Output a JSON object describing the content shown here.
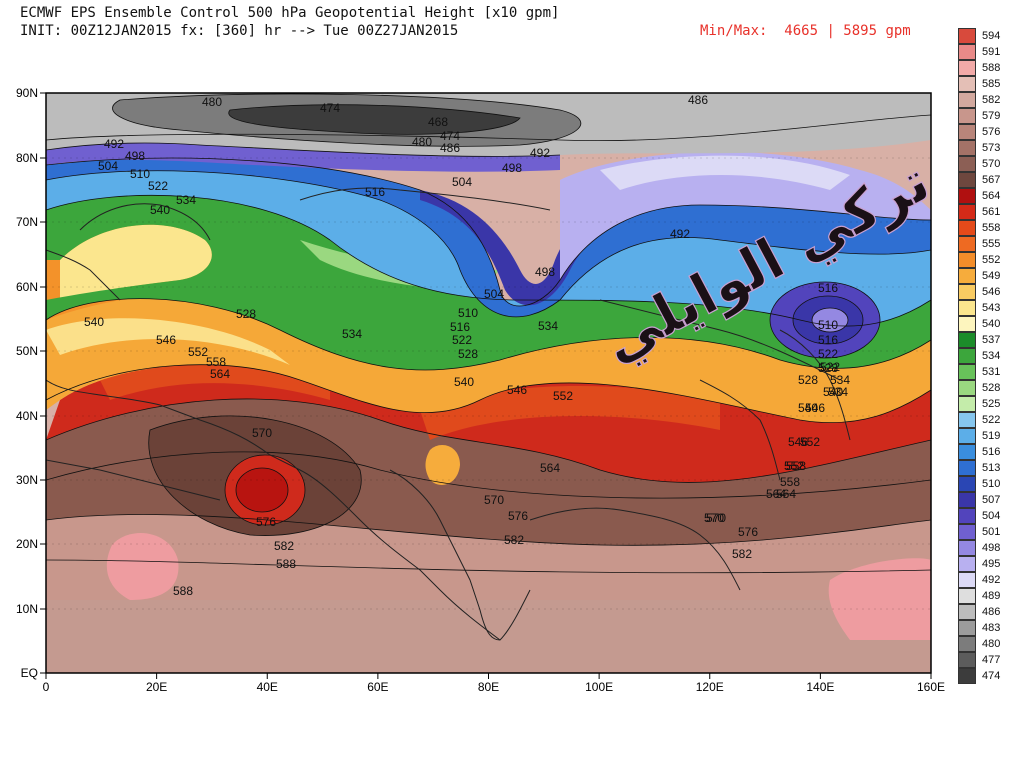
{
  "header": {
    "title": "ECMWF EPS Ensemble Control 500 hPa Geopotential Height [x10 gpm]",
    "init": "INIT: 00Z12JAN2015 fx: [360] hr --> Tue 00Z27JAN2015",
    "minmax_label": "Min/Max:",
    "minmax_value": "4665 | 5895 gpm"
  },
  "watermark": "تركي الوايلي",
  "axes": {
    "y_ticks": [
      "90N",
      "80N",
      "70N",
      "60N",
      "50N",
      "40N",
      "30N",
      "20N",
      "10N",
      "EQ"
    ],
    "x_ticks": [
      "0",
      "20E",
      "40E",
      "60E",
      "80E",
      "100E",
      "120E",
      "140E",
      "160E"
    ]
  },
  "colorbar": {
    "levels": [
      "594",
      "591",
      "588",
      "585",
      "582",
      "579",
      "576",
      "573",
      "570",
      "567",
      "564",
      "561",
      "558",
      "555",
      "552",
      "549",
      "546",
      "543",
      "540",
      "537",
      "534",
      "531",
      "528",
      "525",
      "522",
      "519",
      "516",
      "513",
      "510",
      "507",
      "504",
      "501",
      "498",
      "495",
      "492",
      "489",
      "486",
      "483",
      "480",
      "477",
      "474"
    ],
    "colors": [
      "#d84a3c",
      "#e98a88",
      "#f2aaa8",
      "#e4bfb6",
      "#d3a99f",
      "#c8968c",
      "#b8857a",
      "#a47267",
      "#8c5f55",
      "#6e473e",
      "#b01010",
      "#d42a18",
      "#e44a1a",
      "#ee6a22",
      "#f38d2a",
      "#f6ac3c",
      "#f9cb62",
      "#fbe68e",
      "#fdf5be",
      "#1c8c2a",
      "#3ca63c",
      "#68c25a",
      "#9ad880",
      "#c4ecaa",
      "#86c6ee",
      "#5caee8",
      "#3a8ede",
      "#2f6fd2",
      "#2a46b4",
      "#3a36a8",
      "#5244bc",
      "#7060d0",
      "#9488e2",
      "#b8b0f0",
      "#dcdaf6",
      "#dedede",
      "#bcbcbc",
      "#9c9c9c",
      "#7c7c7c",
      "#5c5c5c",
      "#3c3c3c"
    ]
  },
  "contour_labels": [
    {
      "text": "480"
    },
    {
      "text": "474"
    },
    {
      "text": "468"
    },
    {
      "text": "480"
    },
    {
      "text": "474"
    },
    {
      "text": "486"
    },
    {
      "text": "486"
    },
    {
      "text": "492"
    },
    {
      "text": "498"
    },
    {
      "text": "504"
    },
    {
      "text": "510"
    },
    {
      "text": "492"
    },
    {
      "text": "498"
    },
    {
      "text": "504"
    },
    {
      "text": "516"
    },
    {
      "text": "522"
    },
    {
      "text": "534"
    },
    {
      "text": "540"
    },
    {
      "text": "492"
    },
    {
      "text": "498"
    },
    {
      "text": "504"
    },
    {
      "text": "510"
    },
    {
      "text": "516"
    },
    {
      "text": "522"
    },
    {
      "text": "528"
    },
    {
      "text": "534"
    },
    {
      "text": "540"
    },
    {
      "text": "546"
    },
    {
      "text": "552"
    },
    {
      "text": "546"
    },
    {
      "text": "552"
    },
    {
      "text": "558"
    },
    {
      "text": "564"
    },
    {
      "text": "528"
    },
    {
      "text": "540"
    },
    {
      "text": "534"
    },
    {
      "text": "510"
    },
    {
      "text": "516"
    },
    {
      "text": "522"
    },
    {
      "text": "528"
    },
    {
      "text": "534"
    },
    {
      "text": "540"
    },
    {
      "text": "546"
    },
    {
      "text": "552"
    },
    {
      "text": "558"
    },
    {
      "text": "564"
    },
    {
      "text": "570"
    },
    {
      "text": "576"
    },
    {
      "text": "582"
    },
    {
      "text": "588"
    },
    {
      "text": "570"
    },
    {
      "text": "564"
    },
    {
      "text": "576"
    },
    {
      "text": "582"
    },
    {
      "text": "570"
    },
    {
      "text": "576"
    },
    {
      "text": "582"
    },
    {
      "text": "588"
    },
    {
      "text": "516"
    },
    {
      "text": "522"
    },
    {
      "text": "528"
    },
    {
      "text": "534"
    },
    {
      "text": "540"
    },
    {
      "text": "546"
    },
    {
      "text": "552"
    },
    {
      "text": "558"
    },
    {
      "text": "564"
    },
    {
      "text": "570"
    }
  ]
}
